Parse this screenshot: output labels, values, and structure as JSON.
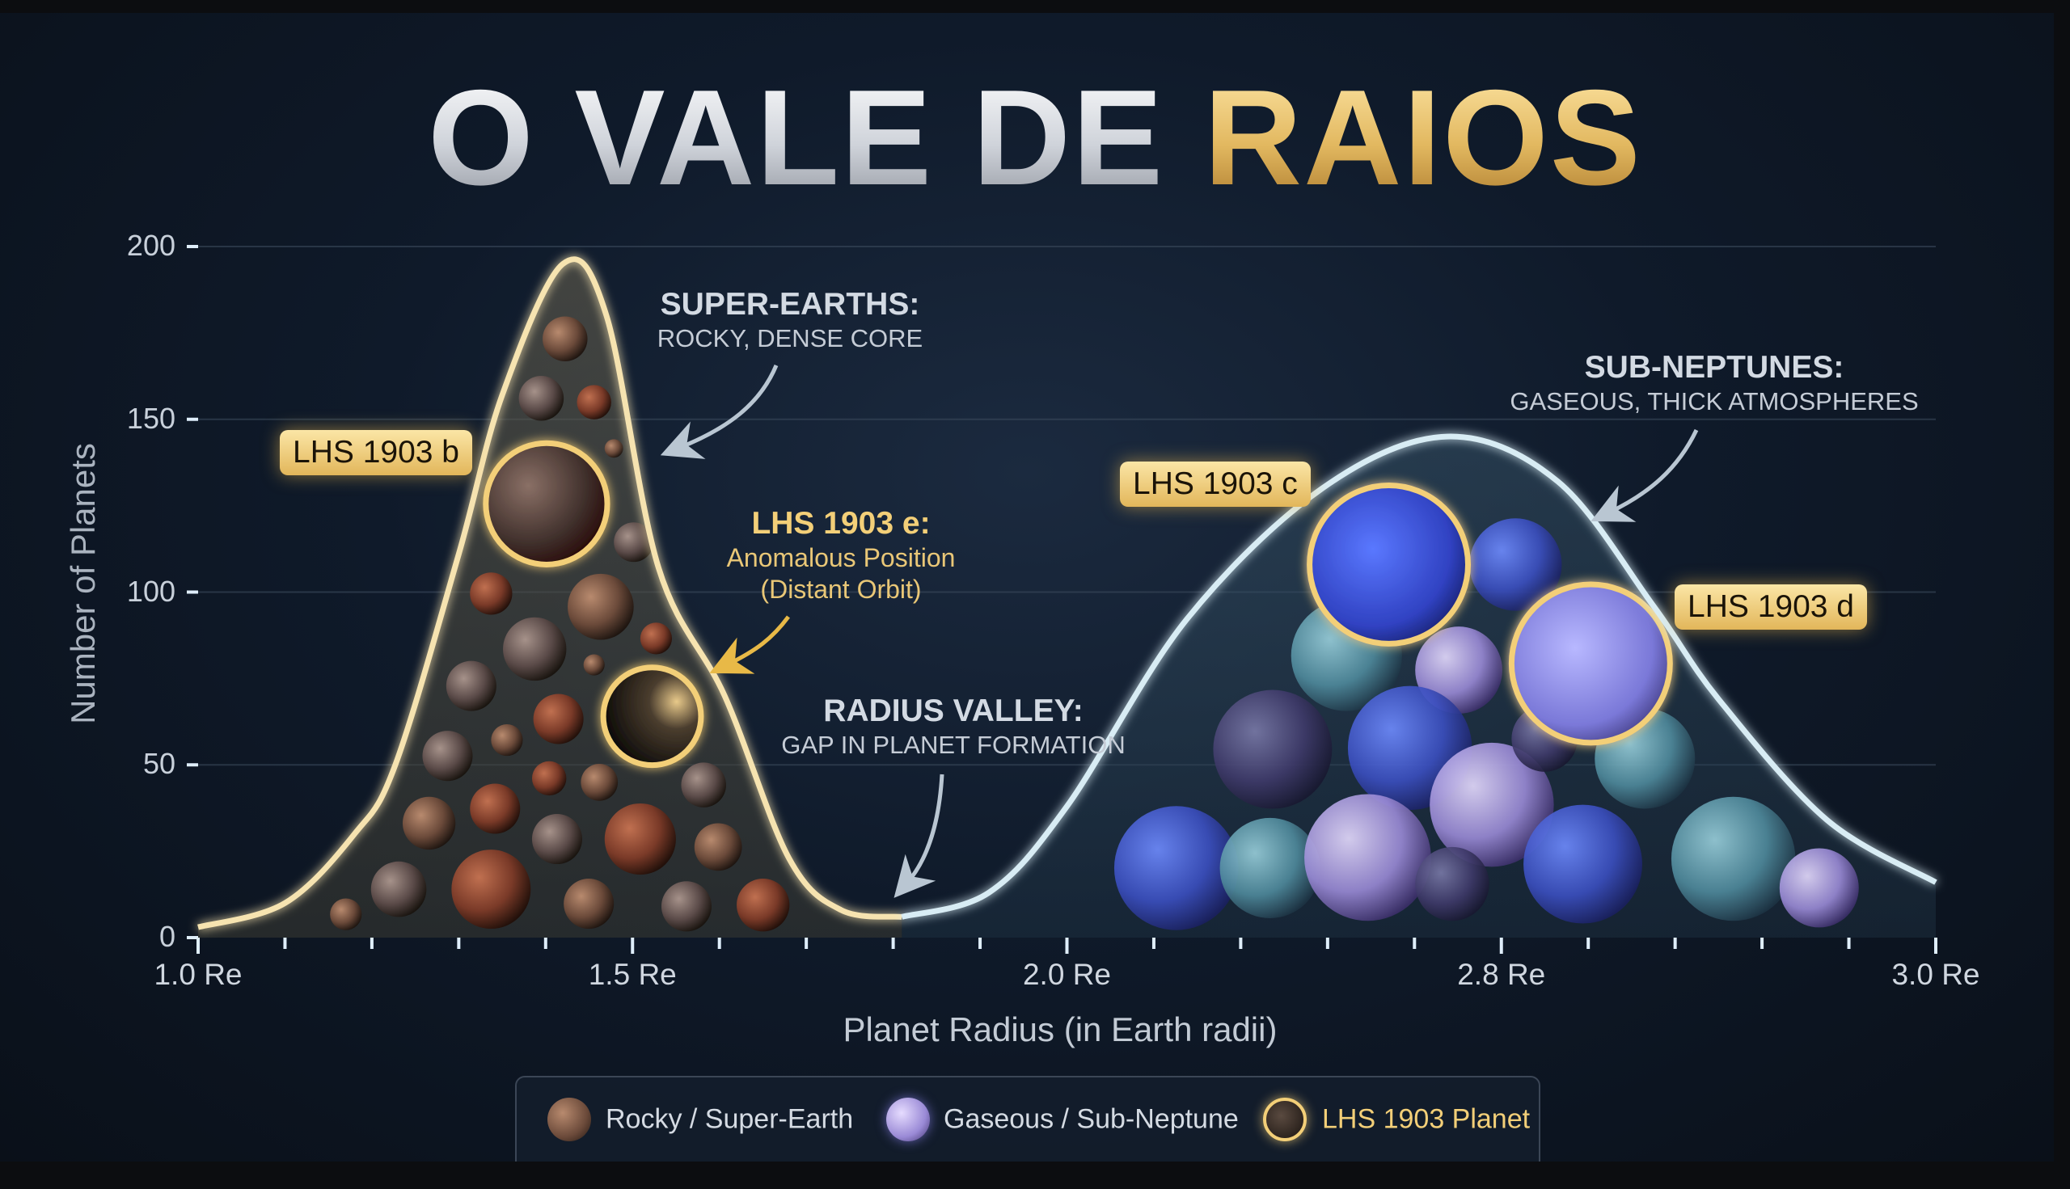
{
  "title": {
    "part1": "O VALE DE ",
    "part2": "RAIOS"
  },
  "chart_data": {
    "type": "area",
    "ylabel": "Number of Planets",
    "xlabel": "Planet Radius (in Earth radii)",
    "ylim": [
      0,
      200
    ],
    "y_ticks": [
      0,
      50,
      100,
      150,
      200
    ],
    "x_ticks": [
      {
        "value": 1.0,
        "label": "1.0 Re"
      },
      {
        "value": 1.5,
        "label": "1.5 Re"
      },
      {
        "value": 2.0,
        "label": "2.0 Re"
      },
      {
        "value": 2.8,
        "label": "2.8 Re"
      },
      {
        "value": 3.0,
        "label": "3.0 Re"
      }
    ],
    "x_scale": "piecewise (labeled ticks equally spaced)",
    "grid": true,
    "series": [
      {
        "name": "Rocky / Super-Earth",
        "color": "#f6e3b0",
        "points": [
          [
            1.0,
            3
          ],
          [
            1.1,
            10
          ],
          [
            1.18,
            30
          ],
          [
            1.227,
            50
          ],
          [
            1.3,
            111
          ],
          [
            1.35,
            157
          ],
          [
            1.42,
            195
          ],
          [
            1.47,
            180
          ],
          [
            1.53,
            107
          ],
          [
            1.606,
            70
          ],
          [
            1.68,
            23
          ],
          [
            1.74,
            8
          ],
          [
            1.81,
            6
          ]
        ]
      },
      {
        "name": "Gaseous / Sub-Neptune",
        "color": "#d8ecf4",
        "points": [
          [
            1.81,
            6
          ],
          [
            1.91,
            13
          ],
          [
            2.0,
            38
          ],
          [
            2.22,
            92
          ],
          [
            2.47,
            130
          ],
          [
            2.7,
            145
          ],
          [
            2.826,
            132
          ],
          [
            2.87,
            96
          ],
          [
            2.9,
            69
          ],
          [
            2.95,
            34
          ],
          [
            3.0,
            16
          ]
        ]
      }
    ],
    "annotations": {
      "super_earths": {
        "heading": "SUPER-EARTHS:",
        "sub": "ROCKY, DENSE CORE"
      },
      "lhs_e": {
        "heading": "LHS 1903 e:",
        "sub1": "Anomalous Position",
        "sub2": "(Distant Orbit)"
      },
      "valley": {
        "heading": "RADIUS VALLEY:",
        "sub": "GAP IN PLANET FORMATION"
      },
      "sub_neptunes": {
        "heading": "SUB-NEPTUNES:",
        "sub": "GASEOUS, THICK ATMOSPHERES"
      }
    },
    "planet_labels": {
      "b": "LHS 1903 b",
      "c": "LHS 1903 c",
      "d": "LHS 1903 d"
    },
    "legend": [
      {
        "label": "Rocky / Super-Earth",
        "icon": "rocky-planet-icon"
      },
      {
        "label": "Gaseous / Sub-Neptune",
        "icon": "gas-planet-icon"
      },
      {
        "label": "LHS 1903 Planet",
        "icon": "lhs-planet-icon",
        "color": "#f3cf78"
      }
    ],
    "colors": {
      "gold": "#f3cf78",
      "rocky_curve": "#f6e3b0",
      "gas_curve": "#d8ecf4",
      "axis": "#dfeefb"
    }
  }
}
